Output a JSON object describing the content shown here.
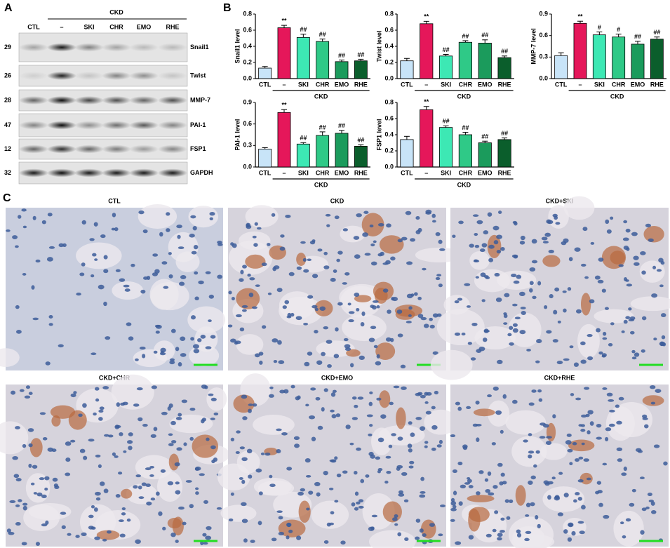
{
  "panels": {
    "a": "A",
    "b": "B",
    "c": "C"
  },
  "blot": {
    "group_label": "CKD",
    "lanes": [
      "CTL",
      "–",
      "SKI",
      "CHR",
      "EMO",
      "RHE"
    ],
    "rows": [
      {
        "marker": "29",
        "protein": "Snail1"
      },
      {
        "marker": "26",
        "protein": "Twist"
      },
      {
        "marker": "28",
        "protein": "MMP-7"
      },
      {
        "marker": "47",
        "protein": "PAI-1"
      },
      {
        "marker": "12",
        "protein": "FSP1"
      },
      {
        "marker": "32",
        "protein": "GAPDH"
      }
    ]
  },
  "chart_data": [
    {
      "type": "bar",
      "ylabel": "Snail1 level",
      "categories": [
        "CTL",
        "–",
        "SKI",
        "CHR",
        "EMO",
        "RHE"
      ],
      "group_label": "CKD",
      "values": [
        0.13,
        0.63,
        0.51,
        0.46,
        0.21,
        0.22
      ],
      "errors": [
        0.02,
        0.03,
        0.04,
        0.03,
        0.02,
        0.02
      ],
      "annotations": [
        null,
        "**",
        "##",
        "##",
        "##",
        "##"
      ],
      "colors": [
        "#c8e4f8",
        "#e5175a",
        "#3de8b4",
        "#2fc987",
        "#1b9b5c",
        "#0b5e2c"
      ],
      "ylim": [
        0,
        0.8
      ],
      "yticks": [
        {
          "value": 0,
          "label": "0.0"
        },
        0.2,
        0.4,
        0.6,
        0.8
      ]
    },
    {
      "type": "bar",
      "ylabel": "Twist level",
      "categories": [
        "CTL",
        "–",
        "SKI",
        "CHR",
        "EMO",
        "RHE"
      ],
      "group_label": "CKD",
      "values": [
        0.22,
        0.68,
        0.28,
        0.45,
        0.44,
        0.26
      ],
      "errors": [
        0.03,
        0.03,
        0.02,
        0.02,
        0.04,
        0.02
      ],
      "annotations": [
        null,
        "**",
        "##",
        "##",
        "##",
        "##"
      ],
      "colors": [
        "#c8e4f8",
        "#e5175a",
        "#3de8b4",
        "#2fc987",
        "#1b9b5c",
        "#0b5e2c"
      ],
      "ylim": [
        0,
        0.8
      ],
      "yticks": [
        {
          "value": 0,
          "label": "0.0"
        },
        0.2,
        0.4,
        0.6,
        0.8
      ]
    },
    {
      "type": "bar",
      "ylabel": "MMP-7 level",
      "categories": [
        "CTL",
        "–",
        "SKI",
        "CHR",
        "EMO",
        "RHE"
      ],
      "group_label": "CKD",
      "values": [
        0.32,
        0.77,
        0.61,
        0.58,
        0.48,
        0.55
      ],
      "errors": [
        0.04,
        0.03,
        0.04,
        0.04,
        0.04,
        0.03
      ],
      "annotations": [
        null,
        "**",
        "#",
        "#",
        "##",
        "##"
      ],
      "colors": [
        "#c8e4f8",
        "#e5175a",
        "#3de8b4",
        "#2fc987",
        "#1b9b5c",
        "#0b5e2c"
      ],
      "ylim": [
        0,
        0.9
      ],
      "yticks": [
        {
          "value": 0,
          "label": "0.0"
        },
        0.3,
        0.6,
        0.9
      ]
    },
    {
      "type": "bar",
      "ylabel": "PAI-1 level",
      "categories": [
        "CTL",
        "–",
        "SKI",
        "CHR",
        "EMO",
        "RHE"
      ],
      "group_label": "CKD",
      "values": [
        0.25,
        0.76,
        0.32,
        0.44,
        0.47,
        0.29
      ],
      "errors": [
        0.02,
        0.04,
        0.02,
        0.05,
        0.04,
        0.02
      ],
      "annotations": [
        null,
        "**",
        "##",
        "##",
        "##",
        "##"
      ],
      "colors": [
        "#c8e4f8",
        "#e5175a",
        "#3de8b4",
        "#2fc987",
        "#1b9b5c",
        "#0b5e2c"
      ],
      "ylim": [
        0,
        0.9
      ],
      "yticks": [
        {
          "value": 0,
          "label": "0.0"
        },
        0.3,
        0.6,
        0.9
      ]
    },
    {
      "type": "bar",
      "ylabel": "FSP1 level",
      "categories": [
        "CTL",
        "–",
        "SKI",
        "CHR",
        "EMO",
        "RHE"
      ],
      "group_label": "CKD",
      "values": [
        0.34,
        0.71,
        0.49,
        0.4,
        0.3,
        0.34
      ],
      "errors": [
        0.04,
        0.04,
        0.02,
        0.03,
        0.02,
        0.02
      ],
      "annotations": [
        null,
        "**",
        "##",
        "##",
        "##",
        "##"
      ],
      "colors": [
        "#c8e4f8",
        "#e5175a",
        "#3de8b4",
        "#2fc987",
        "#1b9b5c",
        "#0b5e2c"
      ],
      "ylim": [
        0,
        0.8
      ],
      "yticks": [
        {
          "value": 0,
          "label": "0.0"
        },
        0.2,
        0.4,
        0.6,
        0.8
      ]
    }
  ],
  "histology": {
    "titles": [
      "CTL",
      "CKD",
      "CKD+SKI",
      "CKD+CHR",
      "CKD+EMO",
      "CKD+RHE"
    ]
  }
}
